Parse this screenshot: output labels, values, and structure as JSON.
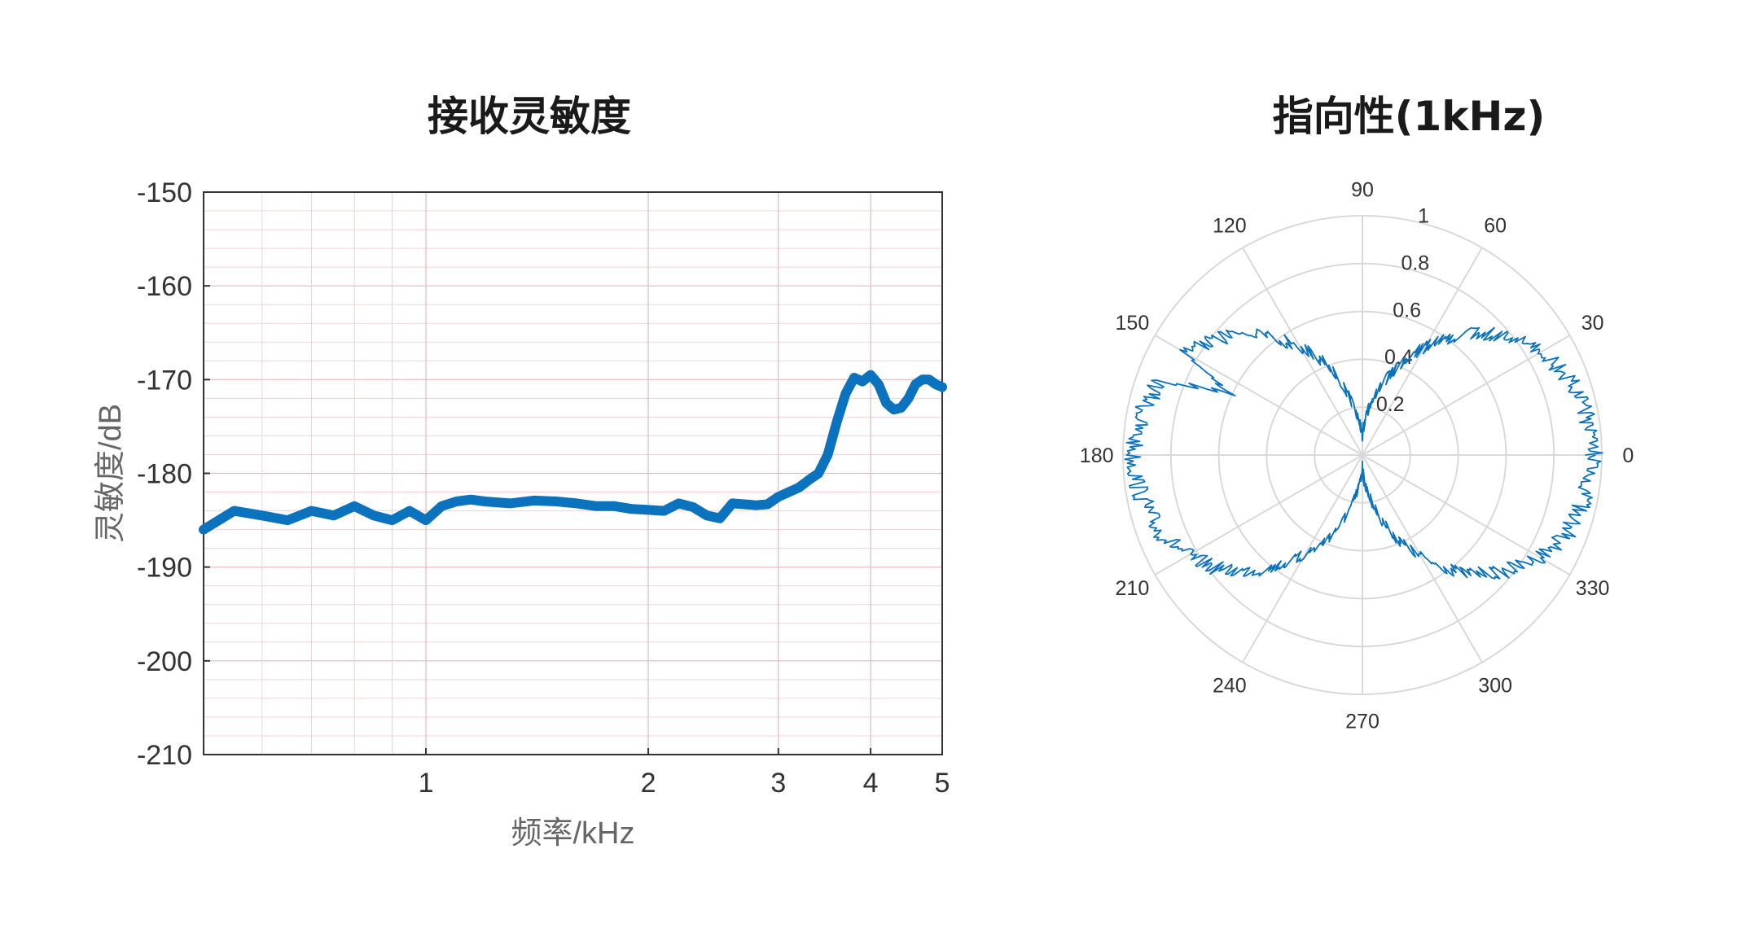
{
  "colors": {
    "line": "#0b72bd",
    "grid_major": "#e6b7be",
    "grid_minor": "#f1d3d7",
    "polar_grid": "#d9d9d9",
    "axis": "#333333",
    "text": "#333333"
  },
  "chart_data": [
    {
      "type": "line",
      "title": "接收灵敏度",
      "xlabel": "频率/kHz",
      "ylabel": "灵敏度/dB",
      "xscale": "log",
      "xlim": [
        0.5,
        5
      ],
      "ylim": [
        -210,
        -150
      ],
      "grid": true,
      "xticks": [
        "1",
        "2",
        "3",
        "4",
        "5"
      ],
      "yticks": [
        "-150",
        "-160",
        "-170",
        "-180",
        "-190",
        "-200",
        "-210"
      ],
      "series": [
        {
          "x": [
            0.5,
            0.55,
            0.6,
            0.65,
            0.7,
            0.75,
            0.8,
            0.85,
            0.9,
            0.95,
            1.0,
            1.05,
            1.1,
            1.15,
            1.2,
            1.3,
            1.4,
            1.5,
            1.6,
            1.7,
            1.8,
            1.9,
            2.0,
            2.1,
            2.2,
            2.3,
            2.4,
            2.5,
            2.6,
            2.7,
            2.8,
            2.9,
            3.0,
            3.1,
            3.2,
            3.3,
            3.4,
            3.5,
            3.6,
            3.7,
            3.8,
            3.9,
            4.0,
            4.1,
            4.2,
            4.3,
            4.4,
            4.5,
            4.6,
            4.7,
            4.8,
            4.9,
            5.0
          ],
          "y": [
            -186,
            -184,
            -184.5,
            -185,
            -184,
            -184.5,
            -183.5,
            -184.5,
            -185,
            -184,
            -185,
            -183.5,
            -183,
            -182.8,
            -183,
            -183.2,
            -182.9,
            -183,
            -183.2,
            -183.5,
            -183.5,
            -183.8,
            -183.9,
            -184,
            -183.2,
            -183.6,
            -184.5,
            -184.8,
            -183.2,
            -183.3,
            -183.4,
            -183.3,
            -182.5,
            -182.0,
            -181.5,
            -180.7,
            -180.0,
            -178.0,
            -174.5,
            -171.5,
            -169.8,
            -170.2,
            -169.5,
            -170.5,
            -172.5,
            -173.2,
            -173.0,
            -172.0,
            -170.5,
            -170.0,
            -170.0,
            -170.5,
            -170.8
          ]
        }
      ]
    },
    {
      "type": "polar",
      "title": "指向性(1kHz)",
      "rlim": [
        0,
        1
      ],
      "rticks": [
        "0.2",
        "0.4",
        "0.6",
        "0.8",
        "1"
      ],
      "theta_ticks": [
        "0",
        "30",
        "60",
        "90",
        "120",
        "150",
        "180",
        "210",
        "240",
        "270",
        "300",
        "330"
      ],
      "pattern": "figure-eight",
      "series": [
        {
          "theta_deg": [
            0,
            10,
            20,
            30,
            40,
            50,
            60,
            70,
            80,
            90,
            100,
            110,
            120,
            130,
            140,
            150,
            155,
            160,
            170,
            180,
            190,
            200,
            210,
            220,
            230,
            240,
            250,
            260,
            270,
            280,
            290,
            300,
            310,
            320,
            330,
            340,
            350
          ],
          "r": [
            0.97,
            0.95,
            0.92,
            0.86,
            0.77,
            0.66,
            0.52,
            0.37,
            0.22,
            0.08,
            0.2,
            0.38,
            0.52,
            0.65,
            0.76,
            0.85,
            0.6,
            0.9,
            0.94,
            0.96,
            0.94,
            0.91,
            0.84,
            0.75,
            0.62,
            0.48,
            0.34,
            0.18,
            0.05,
            0.18,
            0.34,
            0.49,
            0.64,
            0.76,
            0.85,
            0.92,
            0.95
          ]
        }
      ]
    }
  ]
}
